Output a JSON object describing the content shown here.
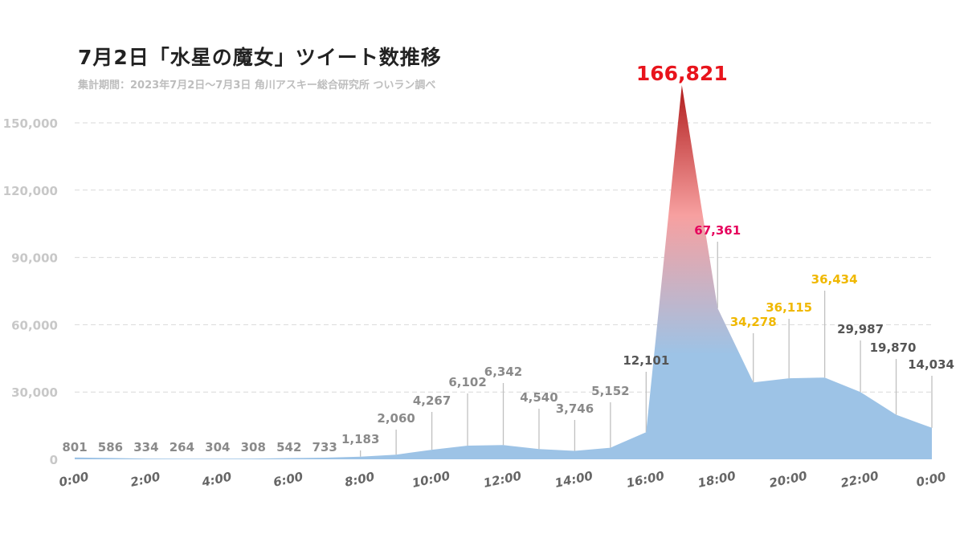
{
  "chart_data": {
    "type": "area",
    "title": "7月2日「水星の魔女」ツイート数推移",
    "subtitle": "集計期間：2023年7月2日～7月3日 角川アスキー総合研究所 ついラン調べ",
    "x": [
      "0:00",
      "1:00",
      "2:00",
      "3:00",
      "4:00",
      "5:00",
      "6:00",
      "7:00",
      "8:00",
      "9:00",
      "10:00",
      "11:00",
      "12:00",
      "13:00",
      "14:00",
      "15:00",
      "16:00",
      "17:00",
      "18:00",
      "19:00",
      "20:00",
      "21:00",
      "22:00",
      "23:00",
      "0:00"
    ],
    "values": [
      801,
      586,
      334,
      264,
      304,
      308,
      542,
      733,
      1183,
      2060,
      4267,
      6102,
      6342,
      4540,
      3746,
      5152,
      12101,
      166821,
      67361,
      34278,
      36115,
      36434,
      29987,
      19870,
      14034
    ],
    "labels": [
      "801",
      "586",
      "334",
      "264",
      "304",
      "308",
      "542",
      "733",
      "1,183",
      "2,060",
      "4,267",
      "6,102",
      "6,342",
      "4,540",
      "3,746",
      "5,152",
      "12,101",
      "166,821",
      "67,361",
      "34,278",
      "36,115",
      "36,434",
      "29,987",
      "19,870",
      "14,034"
    ],
    "x_tick_labels": [
      "0:00",
      "2:00",
      "4:00",
      "6:00",
      "8:00",
      "10:00",
      "12:00",
      "14:00",
      "16:00",
      "18:00",
      "20:00",
      "22:00",
      "0:00"
    ],
    "y_ticks": [
      0,
      30000,
      60000,
      90000,
      120000,
      150000
    ],
    "y_tick_labels": [
      "0",
      "30,000",
      "60,000",
      "90,000",
      "120,000",
      "150,000"
    ],
    "ylim": [
      0,
      150000
    ],
    "grid": true,
    "colors": {
      "area_base": "#9dc3e6",
      "area_mid": "#f7a0a0",
      "area_peak": "#b01c1c",
      "peak_label": "#e8141c",
      "second_label": "#e6005c",
      "gold_label": "#f0b800",
      "dark_label": "#555555",
      "light_label": "#8a8a8a",
      "grid": "#d9d9d9",
      "leader": "#c0c0c0"
    }
  }
}
